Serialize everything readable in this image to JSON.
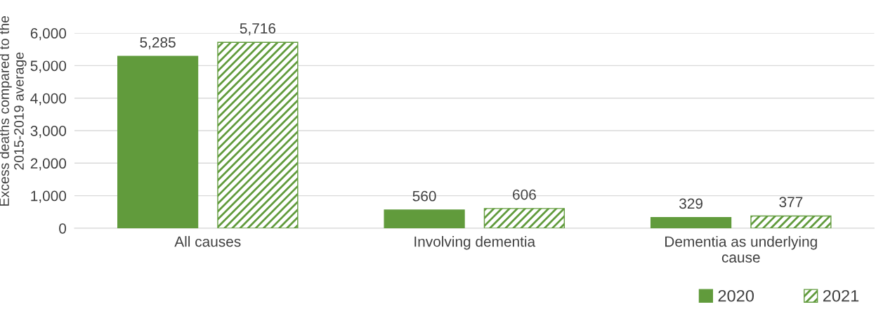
{
  "chart_data": {
    "type": "bar",
    "ylabel": "Excess deaths compared to the\n2015-2019 average",
    "categories": [
      "All causes",
      "Involving dementia",
      "Dementia as underlying\ncause"
    ],
    "series": [
      {
        "name": "2020",
        "color": "#619b3c",
        "values": [
          5285,
          560,
          329
        ],
        "value_labels": [
          "5,285",
          "560",
          "329"
        ]
      },
      {
        "name": "2021",
        "color": "#619b3c",
        "values": [
          5716,
          606,
          377
        ],
        "value_labels": [
          "5,716",
          "606",
          "377"
        ]
      }
    ],
    "ylim": [
      0,
      6000
    ],
    "yticks": [
      {
        "value": 0,
        "label": "0"
      },
      {
        "value": 1000,
        "label": "1,000"
      },
      {
        "value": 2000,
        "label": "2,000"
      },
      {
        "value": 3000,
        "label": "3,000"
      },
      {
        "value": 4000,
        "label": "4,000"
      },
      {
        "value": 5000,
        "label": "5,000"
      },
      {
        "value": 6000,
        "label": "6,000"
      }
    ],
    "grid": "y",
    "legend": "bottom right"
  }
}
